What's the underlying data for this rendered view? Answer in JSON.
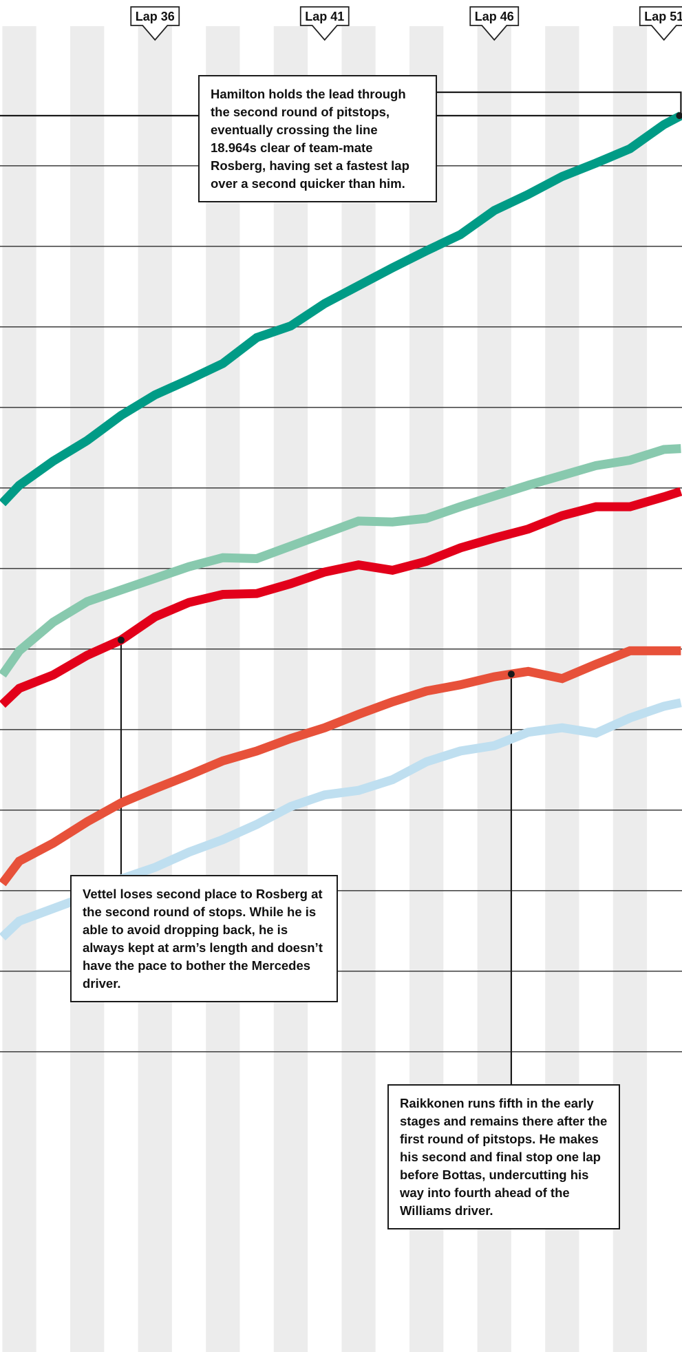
{
  "chart_data": {
    "type": "line",
    "x_range": [
      31.5,
      51.5
    ],
    "lap_markers": [
      {
        "lap": 36,
        "label": "Lap 36"
      },
      {
        "lap": 41,
        "label": "Lap 41"
      },
      {
        "lap": 46,
        "label": "Lap 46"
      },
      {
        "lap": 51,
        "label": "Lap 51"
      }
    ],
    "grid": {
      "vertical_lap_bands": true,
      "horizontal_lines": true
    },
    "series": [
      {
        "color": "#009b86",
        "x": [
          31.5,
          32,
          33,
          34,
          35,
          36,
          37,
          38,
          39,
          40,
          41,
          42,
          43,
          44,
          45,
          46,
          47,
          48,
          49,
          50,
          51,
          51.5
        ],
        "y": [
          945,
          965,
          992,
          1015,
          1043,
          1066,
          1083,
          1101,
          1130,
          1143,
          1168,
          1188,
          1208,
          1227,
          1245,
          1272,
          1290,
          1310,
          1325,
          1341,
          1368,
          1378
        ]
      },
      {
        "color": "#88c9ae",
        "x": [
          31.5,
          32,
          33,
          34,
          35,
          36,
          37,
          38,
          39,
          40,
          41,
          42,
          43,
          44,
          45,
          46,
          47,
          48,
          49,
          50,
          51,
          51.5
        ],
        "y": [
          753,
          780,
          812,
          835,
          848,
          861,
          874,
          884,
          883,
          897,
          911,
          925,
          924,
          928,
          941,
          953,
          965,
          976,
          987,
          993,
          1005,
          1006
        ]
      },
      {
        "color": "#e2001a",
        "x": [
          31.5,
          32,
          33,
          34,
          35,
          36,
          37,
          38,
          39,
          40,
          41,
          42,
          43,
          44,
          45,
          46,
          47,
          48,
          49,
          50,
          51,
          51.5
        ],
        "y": [
          720,
          738,
          753,
          775,
          792,
          818,
          834,
          843,
          844,
          855,
          868,
          876,
          870,
          880,
          895,
          906,
          916,
          931,
          941,
          941,
          952,
          958
        ]
      },
      {
        "color": "#e7513a",
        "x": [
          31.5,
          32,
          33,
          34,
          35,
          36,
          37,
          38,
          39,
          40,
          41,
          42,
          43,
          44,
          45,
          46,
          47,
          48,
          49,
          50,
          51,
          51.5
        ],
        "y": [
          520,
          545,
          565,
          589,
          610,
          626,
          641,
          657,
          668,
          682,
          694,
          709,
          723,
          735,
          742,
          751,
          757,
          749,
          765,
          780,
          780,
          780
        ]
      },
      {
        "color": "#bfdff0",
        "x": [
          31.5,
          32,
          33,
          34,
          35,
          36,
          37,
          38,
          39,
          40,
          41,
          42,
          43,
          44,
          45,
          46,
          47,
          48,
          49,
          50,
          51,
          51.5
        ],
        "y": [
          460,
          478,
          492,
          506,
          525,
          538,
          555,
          569,
          586,
          606,
          619,
          624,
          636,
          656,
          668,
          674,
          689,
          694,
          688,
          705,
          718,
          722
        ]
      }
    ],
    "annotations": [
      {
        "point": {
          "series": 0,
          "x": 51.5
        },
        "text": "Hamilton holds the lead through the second round of pitstops, eventually crossing the line 18.964s clear of team-mate Rosberg, having set a fastest lap over a second quicker than him."
      },
      {
        "point": {
          "series": 2,
          "x": 35
        },
        "text": "Vettel loses second place to Rosberg at the second round of stops. While he is able to avoid dropping back, he is always kept at arm’s length and doesn’t have the pace to bother the Mercedes driver."
      },
      {
        "point": {
          "series": 3,
          "x": 46.5
        },
        "text": "Raikkonen runs fifth in the early stages and remains there after the first round of pitstops. He makes his second and final stop one lap before Bottas, undercutting his way into fourth ahead of the Williams driver."
      }
    ]
  }
}
